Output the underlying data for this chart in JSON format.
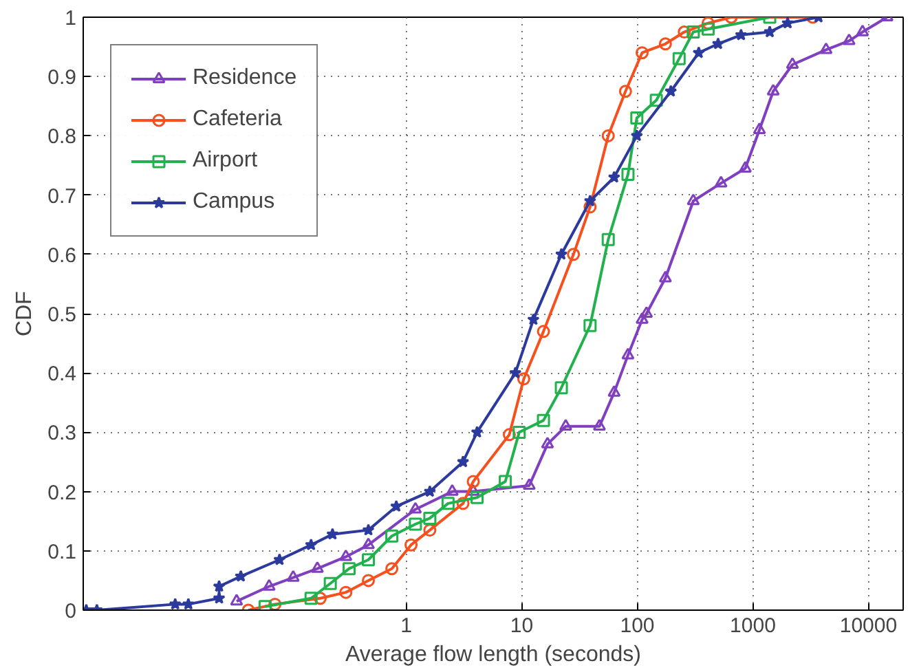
{
  "chart_data": {
    "type": "line",
    "xlabel": "Average flow length (seconds)",
    "ylabel": "CDF",
    "log": "x",
    "grid": true,
    "legend": "top left",
    "line_style": "solid",
    "xlim": [
      0.0016,
      20000
    ],
    "ylim": [
      0,
      1
    ],
    "xticks": [
      1,
      10,
      100,
      1000,
      10000
    ],
    "yticks": [
      0,
      0.1,
      0.2,
      0.3,
      0.4,
      0.5,
      0.6,
      0.7,
      0.8,
      0.9,
      1
    ],
    "series": [
      {
        "name": "Residence",
        "color": "#7f3fbf",
        "marker": "triangle",
        "x": [
          0.034,
          0.065,
          0.105,
          0.17,
          0.3,
          0.47,
          1.2,
          2.5,
          3.8,
          11.6,
          16.7,
          24,
          47,
          63,
          83,
          110,
          120,
          175,
          305,
          530,
          860,
          1140,
          1500,
          2200,
          4300,
          6800,
          8900,
          14500
        ],
        "values": [
          0.015,
          0.04,
          0.055,
          0.07,
          0.09,
          0.11,
          0.17,
          0.2,
          0.2,
          0.21,
          0.28,
          0.31,
          0.31,
          0.367,
          0.43,
          0.49,
          0.5,
          0.56,
          0.69,
          0.72,
          0.745,
          0.81,
          0.875,
          0.92,
          0.945,
          0.96,
          0.975,
          1
        ]
      },
      {
        "name": "Cafeteria",
        "color": "#f5501e",
        "marker": "circle",
        "x": [
          0.043,
          0.073,
          0.18,
          0.3,
          0.47,
          0.75,
          1.1,
          1.6,
          3.1,
          3.8,
          7.8,
          10.4,
          15.4,
          28,
          39,
          56,
          79,
          110,
          175,
          255,
          410,
          650,
          3300
        ],
        "values": [
          0,
          0.01,
          0.02,
          0.03,
          0.05,
          0.07,
          0.11,
          0.135,
          0.18,
          0.217,
          0.296,
          0.39,
          0.47,
          0.6,
          0.68,
          0.8,
          0.875,
          0.94,
          0.955,
          0.975,
          0.99,
          1,
          1
        ]
      },
      {
        "name": "Airport",
        "color": "#22b14c",
        "marker": "square",
        "x": [
          0.06,
          0.15,
          0.22,
          0.32,
          0.47,
          0.75,
          1.2,
          1.6,
          2.3,
          4.1,
          7.2,
          9.5,
          15.4,
          22,
          39,
          56,
          83,
          99,
          146,
          230,
          305,
          410,
          1400
        ],
        "values": [
          0.006,
          0.02,
          0.045,
          0.07,
          0.085,
          0.125,
          0.145,
          0.155,
          0.18,
          0.19,
          0.217,
          0.3,
          0.32,
          0.375,
          0.48,
          0.625,
          0.735,
          0.83,
          0.86,
          0.93,
          0.975,
          0.98,
          1
        ]
      },
      {
        "name": "Campus",
        "color": "#2b3a9c",
        "marker": "star",
        "x": [
          0.0017,
          0.0021,
          0.01,
          0.013,
          0.024,
          0.024,
          0.037,
          0.08,
          0.15,
          0.23,
          0.47,
          0.82,
          1.6,
          3.1,
          4.1,
          8.8,
          12.6,
          22,
          39,
          63,
          99,
          195,
          340,
          500,
          790,
          1400,
          2000,
          3700
        ],
        "values": [
          0,
          0,
          0.01,
          0.01,
          0.02,
          0.04,
          0.057,
          0.085,
          0.11,
          0.128,
          0.135,
          0.175,
          0.2,
          0.25,
          0.3,
          0.4,
          0.49,
          0.6,
          0.69,
          0.73,
          0.8,
          0.875,
          0.94,
          0.955,
          0.97,
          0.975,
          0.99,
          1
        ]
      }
    ]
  }
}
